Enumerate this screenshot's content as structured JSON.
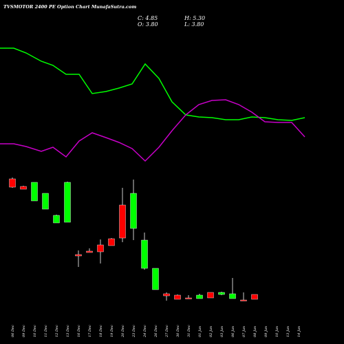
{
  "header": {
    "title": "TVSMOTOR 2400  PE Option  Chart MunafaSutra.com",
    "close": "C: 4.85",
    "high": "H: 5.30",
    "open": "O: 3.80",
    "low": "L: 3.80"
  },
  "colors": {
    "background": "#000000",
    "up": "#00ff00",
    "down": "#ff0000",
    "line_green": "#00ff00",
    "line_magenta": "#c800c8",
    "text": "#ffffff"
  },
  "chart_data": {
    "type": "candlestick",
    "dates": [
      "06 Dec",
      "09 Dec",
      "10 Dec",
      "11 Dec",
      "12 Dec",
      "13 Dec",
      "16 Dec",
      "17 Dec",
      "18 Dec",
      "19 Dec",
      "20 Dec",
      "23 Dec",
      "24 Dec",
      "26 Dec",
      "27 Dec",
      "30 Dec",
      "31 Dec",
      "01 Jan",
      "02 Jan",
      "03 Jan",
      "06 Jan",
      "07 Jan",
      "08 Jan",
      "09 Jan",
      "10 Jan",
      "13 Jan",
      "14 Jan"
    ],
    "candles": [
      {
        "date": "06 Dec",
        "open": null,
        "high": null,
        "low": null,
        "close": null
      },
      {
        "date": "09 Dec",
        "open": null,
        "high": null,
        "low": null,
        "close": null
      },
      {
        "date": "10 Dec",
        "open": null,
        "high": null,
        "low": null,
        "close": null
      },
      {
        "date": "11 Dec",
        "open": null,
        "high": null,
        "low": null,
        "close": null
      },
      {
        "date": "12 Dec",
        "open": null,
        "high": null,
        "low": null,
        "close": null
      },
      {
        "date": "13 Dec",
        "open": null,
        "high": null,
        "low": null,
        "close": null
      },
      {
        "date": "16 Dec",
        "open": null,
        "high": null,
        "low": null,
        "close": null
      },
      {
        "date": "17 Dec",
        "open": null,
        "high": null,
        "low": null,
        "close": null
      },
      {
        "date": "18 Dec",
        "open": null,
        "high": null,
        "low": null,
        "close": null
      },
      {
        "date": "19 Dec",
        "open": null,
        "high": null,
        "low": null,
        "close": null
      },
      {
        "date": "20 Dec",
        "open": null,
        "high": null,
        "low": null,
        "close": null
      },
      {
        "date": "23 Dec",
        "open": null,
        "high": null,
        "low": null,
        "close": null
      },
      {
        "date": "24 Dec",
        "open": null,
        "high": null,
        "low": null,
        "close": null
      },
      {
        "date": "26 Dec",
        "open": null,
        "high": null,
        "low": null,
        "close": null
      },
      {
        "date": "27 Dec",
        "open": null,
        "high": null,
        "low": null,
        "close": null
      },
      {
        "date": "30 Dec",
        "open": null,
        "high": null,
        "low": null,
        "close": null
      },
      {
        "date": "31 Dec",
        "open": null,
        "high": null,
        "low": null,
        "close": null
      },
      {
        "date": "01 Jan",
        "open": null,
        "high": null,
        "low": null,
        "close": null
      },
      {
        "date": "02 Jan",
        "open": null,
        "high": null,
        "low": null,
        "close": null
      },
      {
        "date": "03 Jan",
        "open": null,
        "high": null,
        "low": null,
        "close": null
      },
      {
        "date": "06 Jan",
        "open": null,
        "high": null,
        "low": null,
        "close": null
      },
      {
        "date": "07 Jan",
        "open": null,
        "high": null,
        "low": null,
        "close": null
      },
      {
        "date": "08 Jan",
        "open": null,
        "high": null,
        "low": null,
        "close": null
      },
      {
        "date": "09 Jan",
        "open": null,
        "high": null,
        "low": null,
        "close": null
      },
      {
        "date": "10 Jan",
        "open": null,
        "high": null,
        "low": null,
        "close": null
      },
      {
        "date": "13 Jan",
        "open": null,
        "high": null,
        "low": null,
        "close": null
      },
      {
        "date": "14 Jan",
        "open": 3.8,
        "high": 5.3,
        "low": 3.8,
        "close": 4.85
      }
    ],
    "axes_shown": false,
    "grid": false
  }
}
